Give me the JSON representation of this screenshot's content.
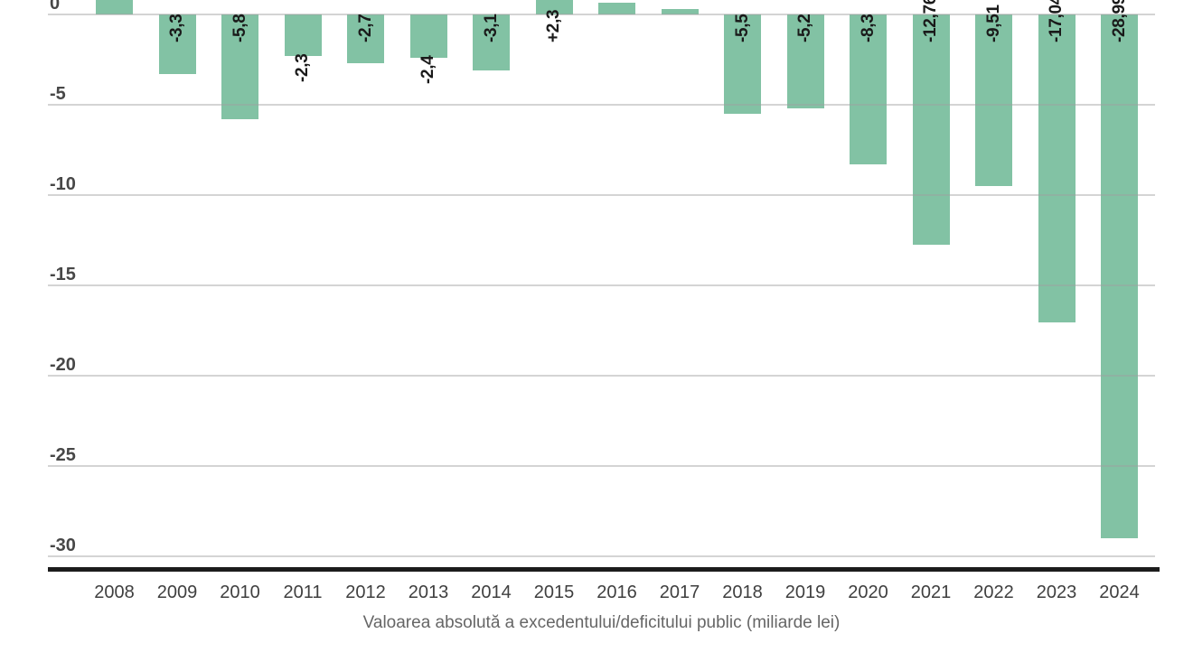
{
  "chart_data": {
    "type": "bar",
    "title": "",
    "xlabel": "Valoarea absolută a excedentului/deficitului public (miliarde lei)",
    "ylabel": "",
    "ylim": [
      -31,
      1
    ],
    "grid": true,
    "legend": false,
    "viewport_note": "top of chart cropped: 0-tick partially visible, positive bars clipped at top edge",
    "colors": {
      "bar": "#82c2a4",
      "gridline": "#d9d9d9",
      "gridline_over_bar": "rgba(160,160,160,0.45)",
      "axis_line": "#1c1c1c",
      "value_label": "#1a1a1a",
      "y_tick": "#474747",
      "x_tick": "#3f3f3f",
      "caption": "#666666"
    },
    "y_ticks": [
      {
        "label": "0",
        "value": 0
      },
      {
        "label": "-5",
        "value": -5
      },
      {
        "label": "-10",
        "value": -10
      },
      {
        "label": "-15",
        "value": -15
      },
      {
        "label": "-20",
        "value": -20
      },
      {
        "label": "-25",
        "value": -25
      },
      {
        "label": "-30",
        "value": -30
      }
    ],
    "bars": [
      {
        "year": "2008",
        "value": 1.2,
        "label": "",
        "label_placement": "none",
        "top_clipped": true
      },
      {
        "year": "2009",
        "value": -3.3,
        "label": "-3,3",
        "label_placement": "inside"
      },
      {
        "year": "2010",
        "value": -5.8,
        "label": "-5,8",
        "label_placement": "inside"
      },
      {
        "year": "2011",
        "value": -2.3,
        "label": "-2,3",
        "label_placement": "below-bar"
      },
      {
        "year": "2012",
        "value": -2.7,
        "label": "-2,7",
        "label_placement": "inside"
      },
      {
        "year": "2013",
        "value": -2.4,
        "label": "-2,4",
        "label_placement": "below-bar"
      },
      {
        "year": "2014",
        "value": -3.1,
        "label": "-3,1",
        "label_placement": "inside"
      },
      {
        "year": "2015",
        "value": 2.3,
        "label": "+2,3",
        "label_placement": "below-zero",
        "top_clipped": true
      },
      {
        "year": "2016",
        "value": 0.65,
        "label": "",
        "label_placement": "none"
      },
      {
        "year": "2017",
        "value": 0.3,
        "label": "",
        "label_placement": "none"
      },
      {
        "year": "2018",
        "value": -5.5,
        "label": "-5,5",
        "label_placement": "inside"
      },
      {
        "year": "2019",
        "value": -5.2,
        "label": "-5,2",
        "label_placement": "inside"
      },
      {
        "year": "2020",
        "value": -8.3,
        "label": "-8,3",
        "label_placement": "inside"
      },
      {
        "year": "2021",
        "value": -12.76,
        "label": "-12,76",
        "label_placement": "inside"
      },
      {
        "year": "2022",
        "value": -9.51,
        "label": "-9,51",
        "label_placement": "inside"
      },
      {
        "year": "2023",
        "value": -17.04,
        "label": "-17,04",
        "label_placement": "inside"
      },
      {
        "year": "2024",
        "value": -28.99,
        "label": "-28,99",
        "label_placement": "inside"
      }
    ]
  }
}
